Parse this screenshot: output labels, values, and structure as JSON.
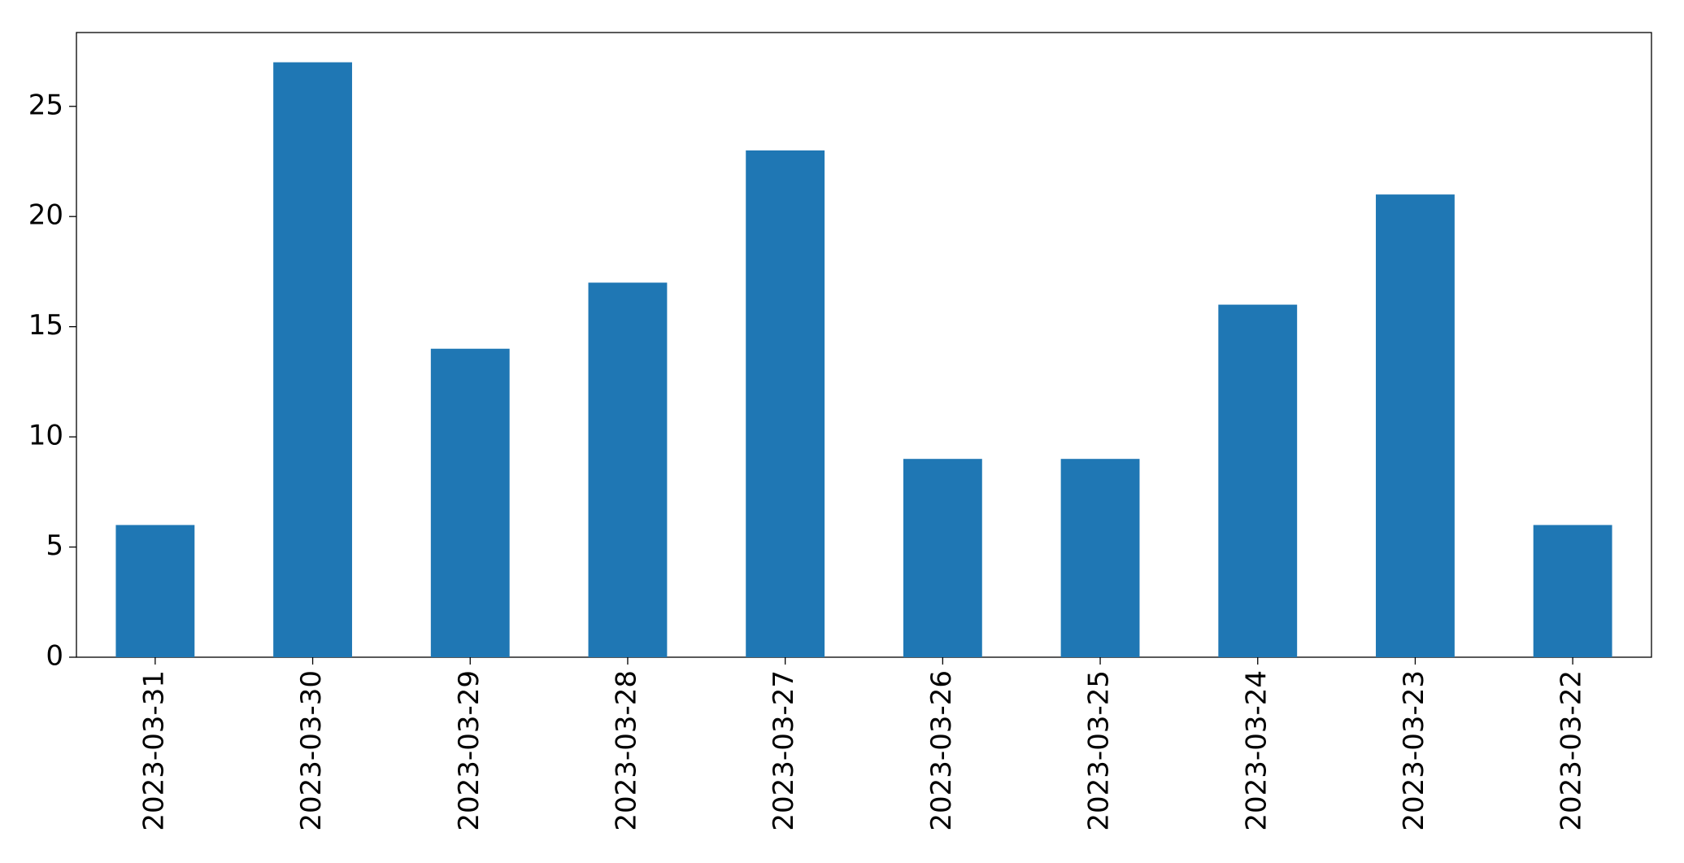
{
  "chart_data": {
    "type": "bar",
    "categories": [
      "2023-03-31",
      "2023-03-30",
      "2023-03-29",
      "2023-03-28",
      "2023-03-27",
      "2023-03-26",
      "2023-03-25",
      "2023-03-24",
      "2023-03-23",
      "2023-03-22"
    ],
    "values": [
      6,
      27,
      14,
      17,
      23,
      9,
      9,
      16,
      21,
      6
    ],
    "color": "#1f77b4",
    "ylim": [
      0,
      28.35
    ],
    "yticks": [
      0,
      5,
      10,
      15,
      20,
      25
    ],
    "grid": false
  }
}
